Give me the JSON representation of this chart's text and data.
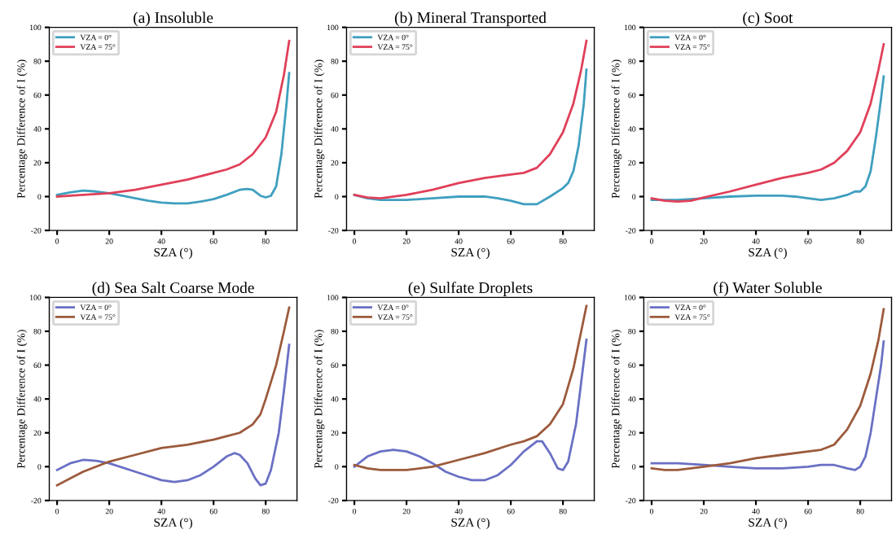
{
  "chart_data": [
    {
      "type": "line",
      "title": "(a) Insoluble",
      "xlabel": "SZA (°)",
      "ylabel": "Percentage Difference of I (%)",
      "xlim": [
        -3,
        92
      ],
      "ylim": [
        -20,
        100
      ],
      "xticks": [
        0,
        20,
        40,
        60,
        80
      ],
      "yticks": [
        -20,
        0,
        20,
        40,
        60,
        80,
        100
      ],
      "legend": "top left",
      "grid": false,
      "series": [
        {
          "name": "VZA = 0°",
          "color": "#3f9fbf",
          "x": [
            0,
            5,
            10,
            15,
            20,
            25,
            30,
            35,
            40,
            45,
            50,
            55,
            60,
            65,
            70,
            73,
            75,
            78,
            80,
            82,
            84,
            86,
            88,
            89
          ],
          "values": [
            1,
            2.5,
            3.5,
            3,
            2,
            0.5,
            -1,
            -2.5,
            -3.5,
            -4,
            -4,
            -3,
            -1.5,
            1,
            4,
            4.5,
            4,
            0.5,
            -0.5,
            0.5,
            6,
            25,
            55,
            73
          ]
        },
        {
          "name": "VZA = 75°",
          "color": "#e0405a",
          "x": [
            0,
            10,
            20,
            30,
            40,
            50,
            60,
            65,
            70,
            75,
            80,
            84,
            87,
            89
          ],
          "values": [
            0,
            1,
            2,
            4,
            7,
            10,
            14,
            16,
            19,
            25,
            35,
            50,
            72,
            92
          ]
        }
      ]
    },
    {
      "type": "line",
      "title": "(b) Mineral Transported",
      "xlabel": "SZA (°)",
      "ylabel": "Percentage Difference of I (%)",
      "xlim": [
        -3,
        92
      ],
      "ylim": [
        -20,
        100
      ],
      "xticks": [
        0,
        20,
        40,
        60,
        80
      ],
      "yticks": [
        -20,
        0,
        20,
        40,
        60,
        80,
        100
      ],
      "legend": "top left",
      "grid": false,
      "series": [
        {
          "name": "VZA = 0°",
          "color": "#3f9fbf",
          "x": [
            0,
            5,
            10,
            20,
            30,
            40,
            50,
            55,
            60,
            65,
            70,
            75,
            80,
            82,
            84,
            86,
            88,
            89
          ],
          "values": [
            1,
            -1,
            -2,
            -2,
            -1,
            0,
            0,
            -1,
            -2.5,
            -4.5,
            -4.5,
            0,
            5,
            8,
            15,
            30,
            55,
            75
          ]
        },
        {
          "name": "VZA = 75°",
          "color": "#e0405a",
          "x": [
            0,
            5,
            10,
            20,
            30,
            40,
            50,
            60,
            65,
            70,
            75,
            80,
            84,
            87,
            89
          ],
          "values": [
            1,
            -0.5,
            -1,
            1,
            4,
            8,
            11,
            13,
            14,
            17,
            25,
            38,
            55,
            75,
            92
          ]
        }
      ]
    },
    {
      "type": "line",
      "title": "(c) Soot",
      "xlabel": "SZA (°)",
      "ylabel": "Percentage Difference of I (%)",
      "xlim": [
        -3,
        92
      ],
      "ylim": [
        -20,
        100
      ],
      "xticks": [
        0,
        20,
        40,
        60,
        80
      ],
      "yticks": [
        -20,
        0,
        20,
        40,
        60,
        80,
        100
      ],
      "legend": "top left",
      "grid": false,
      "series": [
        {
          "name": "VZA = 0°",
          "color": "#3f9fbf",
          "x": [
            0,
            10,
            20,
            30,
            40,
            50,
            55,
            60,
            65,
            70,
            75,
            78,
            80,
            82,
            84,
            86,
            88,
            89
          ],
          "values": [
            -2,
            -2,
            -1,
            0,
            0.5,
            0.5,
            0,
            -1,
            -2,
            -1,
            1,
            3,
            3,
            6,
            15,
            35,
            58,
            71
          ]
        },
        {
          "name": "VZA = 75°",
          "color": "#e0405a",
          "x": [
            0,
            5,
            10,
            15,
            20,
            30,
            40,
            50,
            60,
            65,
            70,
            75,
            80,
            84,
            87,
            89
          ],
          "values": [
            -1,
            -2.5,
            -3,
            -2.5,
            -0.5,
            3,
            7,
            11,
            14,
            16,
            20,
            27,
            38,
            55,
            75,
            90
          ]
        }
      ]
    },
    {
      "type": "line",
      "title": "(d) Sea Salt Coarse Mode",
      "xlabel": "SZA (°)",
      "ylabel": "Percentage Difference of I (%)",
      "xlim": [
        -3,
        92
      ],
      "ylim": [
        -20,
        100
      ],
      "xticks": [
        0,
        20,
        40,
        60,
        80
      ],
      "yticks": [
        -20,
        0,
        20,
        40,
        60,
        80,
        100
      ],
      "legend": "top left",
      "grid": false,
      "series": [
        {
          "name": "VZA = 0°",
          "color": "#6a70c4",
          "x": [
            0,
            5,
            10,
            15,
            20,
            30,
            40,
            45,
            50,
            55,
            60,
            65,
            68,
            70,
            73,
            76,
            78,
            80,
            82,
            85,
            87,
            89
          ],
          "values": [
            -2,
            2,
            4,
            3.5,
            2,
            -3,
            -8,
            -9,
            -8,
            -5,
            0,
            6,
            8,
            7,
            2,
            -7,
            -11,
            -10,
            -2,
            20,
            45,
            72
          ]
        },
        {
          "name": "VZA = 75°",
          "color": "#9c5a3c",
          "x": [
            0,
            5,
            10,
            15,
            20,
            30,
            40,
            50,
            60,
            65,
            70,
            75,
            78,
            80,
            84,
            87,
            89
          ],
          "values": [
            -11,
            -7,
            -3,
            0,
            3,
            7,
            11,
            13,
            16,
            18,
            20,
            25,
            31,
            40,
            60,
            80,
            94
          ]
        }
      ]
    },
    {
      "type": "line",
      "title": "(e) Sulfate Droplets",
      "xlabel": "SZA (°)",
      "ylabel": "Percentage Difference of I (%)",
      "xlim": [
        -3,
        92
      ],
      "ylim": [
        -20,
        100
      ],
      "xticks": [
        0,
        20,
        40,
        60,
        80
      ],
      "yticks": [
        -20,
        0,
        20,
        40,
        60,
        80,
        100
      ],
      "legend": "top left",
      "grid": false,
      "series": [
        {
          "name": "VZA = 0°",
          "color": "#6a70c4",
          "x": [
            0,
            5,
            10,
            15,
            20,
            25,
            30,
            35,
            40,
            45,
            50,
            55,
            60,
            65,
            70,
            72,
            75,
            78,
            80,
            82,
            85,
            87,
            89
          ],
          "values": [
            0,
            6,
            9,
            10,
            9,
            6,
            2,
            -3,
            -6,
            -8,
            -8,
            -5,
            1,
            9,
            15,
            15,
            8,
            -1,
            -2,
            3,
            25,
            50,
            75
          ]
        },
        {
          "name": "VZA = 75°",
          "color": "#9c5a3c",
          "x": [
            0,
            5,
            10,
            20,
            30,
            40,
            50,
            60,
            65,
            70,
            75,
            80,
            84,
            87,
            89
          ],
          "values": [
            1,
            -1,
            -2,
            -2,
            0,
            4,
            8,
            13,
            15,
            18,
            25,
            37,
            58,
            80,
            95
          ]
        }
      ]
    },
    {
      "type": "line",
      "title": "(f) Water Soluble",
      "xlabel": "SZA (°)",
      "ylabel": "Percentage Difference of I (%)",
      "xlim": [
        -3,
        92
      ],
      "ylim": [
        -20,
        100
      ],
      "xticks": [
        0,
        20,
        40,
        60,
        80
      ],
      "yticks": [
        -20,
        0,
        20,
        40,
        60,
        80,
        100
      ],
      "legend": "top left",
      "grid": false,
      "series": [
        {
          "name": "VZA = 0°",
          "color": "#6a70c4",
          "x": [
            0,
            10,
            20,
            30,
            40,
            50,
            60,
            65,
            70,
            75,
            78,
            80,
            82,
            84,
            86,
            88,
            89
          ],
          "values": [
            2,
            2,
            1,
            0,
            -1,
            -1,
            0,
            1,
            1,
            -1,
            -2,
            0,
            6,
            20,
            40,
            60,
            74
          ]
        },
        {
          "name": "VZA = 75°",
          "color": "#9c5a3c",
          "x": [
            0,
            5,
            10,
            20,
            30,
            40,
            50,
            60,
            65,
            70,
            75,
            80,
            84,
            87,
            89
          ],
          "values": [
            -1,
            -2,
            -2,
            0,
            2,
            5,
            7,
            9,
            10,
            13,
            22,
            36,
            55,
            75,
            93
          ]
        }
      ]
    }
  ]
}
